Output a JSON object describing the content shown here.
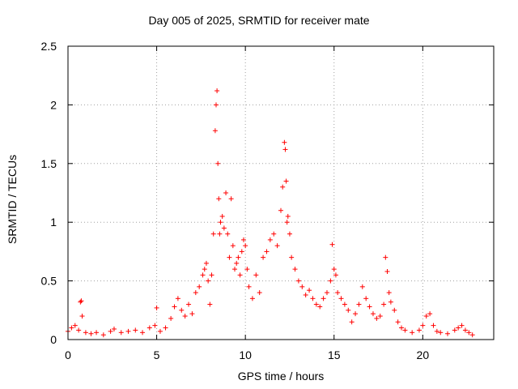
{
  "chart_data": {
    "type": "scatter",
    "title": "Day 005 of 2025, SRMTID for receiver mate",
    "xlabel": "GPS time / hours",
    "ylabel": "SRMTID / TECUs",
    "xlim": [
      0,
      24
    ],
    "ylim": [
      0,
      2.5
    ],
    "xticks": [
      0,
      5,
      10,
      15,
      20
    ],
    "xtick_labels": [
      "0",
      "5",
      "10",
      "15",
      "20"
    ],
    "yticks": [
      0,
      0.5,
      1,
      1.5,
      2,
      2.5
    ],
    "ytick_labels": [
      "0",
      "0.5",
      "1",
      "1.5",
      "2",
      "2.5"
    ],
    "grid": true,
    "marker": "+",
    "color": "#ff0000",
    "series": [
      {
        "name": "SRMTID",
        "x": [
          0.0,
          0.2,
          0.4,
          0.6,
          0.7,
          0.75,
          0.8,
          1.0,
          1.3,
          1.6,
          2.0,
          2.4,
          2.6,
          3.0,
          3.4,
          3.8,
          4.2,
          4.6,
          4.9,
          5.0,
          5.2,
          5.5,
          5.8,
          6.0,
          6.2,
          6.4,
          6.6,
          6.8,
          7.0,
          7.2,
          7.4,
          7.6,
          7.7,
          7.8,
          7.9,
          8.0,
          8.1,
          8.2,
          8.3,
          8.35,
          8.4,
          8.45,
          8.5,
          8.55,
          8.6,
          8.7,
          8.8,
          8.9,
          9.0,
          9.1,
          9.2,
          9.3,
          9.4,
          9.5,
          9.6,
          9.7,
          9.8,
          9.9,
          10.0,
          10.1,
          10.2,
          10.4,
          10.6,
          10.8,
          11.0,
          11.2,
          11.4,
          11.6,
          11.8,
          12.0,
          12.1,
          12.2,
          12.25,
          12.3,
          12.35,
          12.4,
          12.5,
          12.6,
          12.8,
          13.0,
          13.2,
          13.4,
          13.6,
          13.8,
          14.0,
          14.2,
          14.4,
          14.6,
          14.8,
          14.9,
          15.0,
          15.1,
          15.2,
          15.4,
          15.6,
          15.8,
          16.0,
          16.2,
          16.4,
          16.6,
          16.8,
          17.0,
          17.2,
          17.4,
          17.6,
          17.8,
          17.9,
          18.0,
          18.1,
          18.2,
          18.4,
          18.6,
          18.8,
          19.0,
          19.4,
          19.8,
          20.0,
          20.2,
          20.4,
          20.6,
          20.8,
          21.0,
          21.4,
          21.8,
          22.0,
          22.2,
          22.4,
          22.6,
          22.8
        ],
        "y": [
          0.07,
          0.1,
          0.12,
          0.08,
          0.32,
          0.33,
          0.2,
          0.06,
          0.05,
          0.06,
          0.04,
          0.07,
          0.09,
          0.06,
          0.07,
          0.08,
          0.06,
          0.1,
          0.12,
          0.27,
          0.07,
          0.1,
          0.18,
          0.28,
          0.35,
          0.25,
          0.2,
          0.3,
          0.22,
          0.4,
          0.45,
          0.55,
          0.6,
          0.65,
          0.5,
          0.3,
          0.55,
          0.9,
          1.78,
          2.0,
          2.12,
          1.5,
          1.2,
          0.9,
          1.0,
          1.05,
          0.95,
          1.25,
          0.9,
          0.7,
          1.2,
          0.8,
          0.6,
          0.65,
          0.7,
          0.55,
          0.75,
          0.85,
          0.8,
          0.6,
          0.45,
          0.35,
          0.55,
          0.4,
          0.7,
          0.75,
          0.85,
          0.9,
          0.8,
          1.1,
          1.3,
          1.68,
          1.62,
          1.35,
          1.0,
          1.05,
          0.9,
          0.7,
          0.6,
          0.5,
          0.45,
          0.38,
          0.42,
          0.35,
          0.3,
          0.28,
          0.35,
          0.4,
          0.5,
          0.81,
          0.6,
          0.55,
          0.4,
          0.35,
          0.3,
          0.25,
          0.15,
          0.22,
          0.3,
          0.45,
          0.35,
          0.28,
          0.22,
          0.18,
          0.2,
          0.3,
          0.7,
          0.58,
          0.4,
          0.32,
          0.25,
          0.15,
          0.1,
          0.08,
          0.06,
          0.08,
          0.12,
          0.2,
          0.22,
          0.12,
          0.07,
          0.06,
          0.05,
          0.08,
          0.1,
          0.12,
          0.08,
          0.06,
          0.04
        ]
      }
    ]
  }
}
